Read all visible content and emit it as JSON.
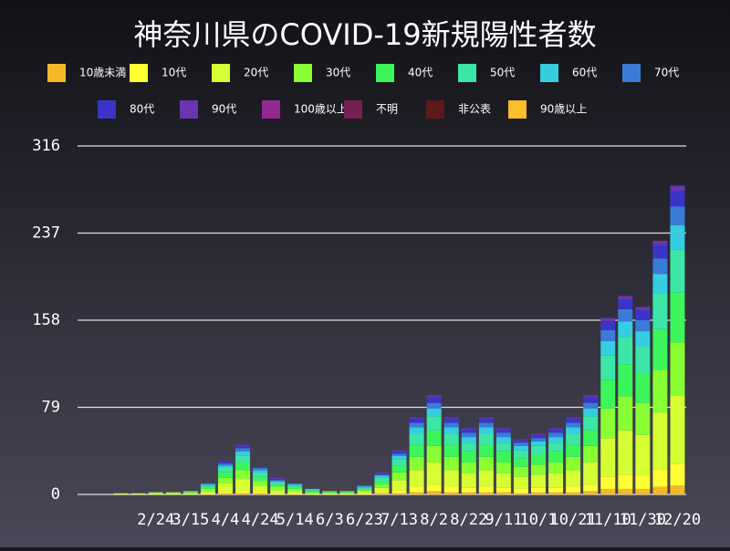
{
  "chart_data": {
    "type": "stacked_bar",
    "title": "神奈川県のCOVID-19新規陽性者数",
    "categories": [
      null,
      null,
      null,
      null,
      "2/24",
      null,
      "3/15",
      null,
      "4/4",
      null,
      "4/24",
      null,
      "5/14",
      null,
      "6/3",
      null,
      "6/23",
      null,
      "7/13",
      null,
      "8/2",
      null,
      "8/22",
      null,
      "9/11",
      null,
      "10/1",
      null,
      "10/21",
      null,
      "11/10",
      null,
      "11/30",
      null,
      "12/20"
    ],
    "series": [
      {
        "name": "10歳未満",
        "color": "#f5b82a",
        "values": [
          0,
          0,
          0,
          0,
          0,
          0,
          0,
          0,
          1,
          1,
          1,
          0,
          0,
          0,
          0,
          0,
          0,
          1,
          1,
          2,
          3,
          2,
          2,
          2,
          2,
          1,
          2,
          2,
          2,
          3,
          5,
          5,
          5,
          7,
          8
        ]
      },
      {
        "name": "10代",
        "color": "#ffff33",
        "values": [
          0,
          0,
          0,
          0,
          0,
          0,
          0,
          1,
          2,
          3,
          2,
          1,
          1,
          0,
          0,
          0,
          1,
          1,
          3,
          5,
          6,
          5,
          4,
          5,
          4,
          4,
          4,
          4,
          5,
          6,
          11,
          13,
          12,
          16,
          20
        ]
      },
      {
        "name": "20代",
        "color": "#d6ff33",
        "values": [
          0,
          0,
          1,
          1,
          1,
          1,
          1,
          2,
          7,
          10,
          5,
          3,
          2,
          1,
          1,
          1,
          2,
          4,
          9,
          15,
          20,
          15,
          13,
          15,
          13,
          11,
          12,
          13,
          15,
          20,
          35,
          40,
          37,
          51,
          62
        ]
      },
      {
        "name": "30代",
        "color": "#88ff33",
        "values": [
          0,
          0,
          0,
          0,
          1,
          1,
          1,
          2,
          5,
          8,
          4,
          3,
          2,
          1,
          1,
          1,
          1,
          3,
          7,
          12,
          15,
          12,
          10,
          12,
          10,
          9,
          9,
          10,
          12,
          15,
          27,
          31,
          29,
          39,
          48
        ]
      },
      {
        "name": "40代",
        "color": "#3cf55a",
        "values": [
          0,
          0,
          0,
          0,
          0,
          0,
          1,
          2,
          5,
          7,
          4,
          2,
          2,
          1,
          1,
          1,
          1,
          3,
          6,
          11,
          14,
          11,
          10,
          11,
          10,
          8,
          9,
          10,
          11,
          14,
          26,
          29,
          27,
          37,
          45
        ]
      },
      {
        "name": "50代",
        "color": "#3ce6a6",
        "values": [
          0,
          0,
          0,
          0,
          0,
          0,
          0,
          1,
          4,
          6,
          4,
          2,
          1,
          1,
          0,
          0,
          1,
          3,
          6,
          10,
          13,
          10,
          8,
          10,
          8,
          7,
          8,
          8,
          10,
          13,
          22,
          25,
          24,
          32,
          39
        ]
      },
      {
        "name": "60代",
        "color": "#36cde0",
        "values": [
          0,
          0,
          0,
          0,
          0,
          0,
          0,
          1,
          2,
          4,
          2,
          1,
          1,
          1,
          0,
          0,
          1,
          2,
          3,
          6,
          7,
          6,
          5,
          6,
          5,
          4,
          4,
          5,
          6,
          7,
          13,
          14,
          14,
          18,
          22
        ]
      },
      {
        "name": "70代",
        "color": "#3a7bd8",
        "values": [
          0,
          0,
          0,
          0,
          0,
          0,
          0,
          1,
          2,
          3,
          2,
          1,
          1,
          0,
          0,
          0,
          1,
          1,
          2,
          4,
          5,
          4,
          4,
          4,
          4,
          3,
          3,
          4,
          4,
          5,
          10,
          11,
          10,
          14,
          17
        ]
      },
      {
        "name": "80代",
        "color": "#3a35c8",
        "values": [
          0,
          0,
          0,
          0,
          0,
          0,
          0,
          0,
          2,
          2,
          1,
          1,
          0,
          0,
          0,
          0,
          0,
          1,
          2,
          4,
          5,
          4,
          3,
          4,
          3,
          2,
          3,
          3,
          4,
          5,
          8,
          9,
          9,
          12,
          14
        ]
      },
      {
        "name": "90代",
        "color": "#6a35b0",
        "values": [
          0,
          0,
          0,
          0,
          0,
          0,
          0,
          0,
          0,
          1,
          0,
          1,
          0,
          0,
          0,
          0,
          0,
          1,
          1,
          1,
          2,
          1,
          1,
          1,
          1,
          1,
          1,
          1,
          1,
          2,
          3,
          3,
          3,
          4,
          5
        ]
      },
      {
        "name": "100歳以上",
        "color": "#92298f",
        "values": [
          0,
          0,
          0,
          0,
          0,
          0,
          0,
          0,
          0,
          0,
          0,
          0,
          0,
          0,
          0,
          0,
          0,
          0,
          0,
          0,
          0,
          0,
          0,
          0,
          0,
          0,
          0,
          0,
          0,
          0,
          0,
          0,
          0,
          0,
          0
        ]
      },
      {
        "name": "不明",
        "color": "#742050",
        "values": [
          0,
          0,
          0,
          0,
          0,
          0,
          0,
          0,
          0,
          0,
          0,
          0,
          0,
          0,
          0,
          0,
          0,
          0,
          0,
          0,
          0,
          0,
          0,
          0,
          0,
          0,
          0,
          0,
          0,
          0,
          0,
          0,
          0,
          0,
          0
        ]
      },
      {
        "name": "非公表",
        "color": "#5e1a1a",
        "values": [
          0,
          0,
          0,
          0,
          0,
          0,
          0,
          0,
          0,
          0,
          0,
          0,
          0,
          0,
          0,
          0,
          0,
          0,
          0,
          0,
          0,
          0,
          0,
          0,
          0,
          0,
          0,
          0,
          0,
          0,
          0,
          0,
          0,
          0,
          0
        ]
      },
      {
        "name": "90歳以上",
        "color": "#fbbd2a",
        "values": [
          0,
          0,
          0,
          0,
          0,
          0,
          0,
          0,
          0,
          0,
          0,
          0,
          0,
          0,
          0,
          0,
          0,
          0,
          0,
          0,
          0,
          0,
          0,
          0,
          0,
          0,
          0,
          0,
          0,
          0,
          0,
          0,
          0,
          0,
          0
        ]
      }
    ],
    "ylim": [
      0,
      316
    ],
    "yticks": [
      0,
      79,
      158,
      237,
      316
    ],
    "grid": true
  }
}
